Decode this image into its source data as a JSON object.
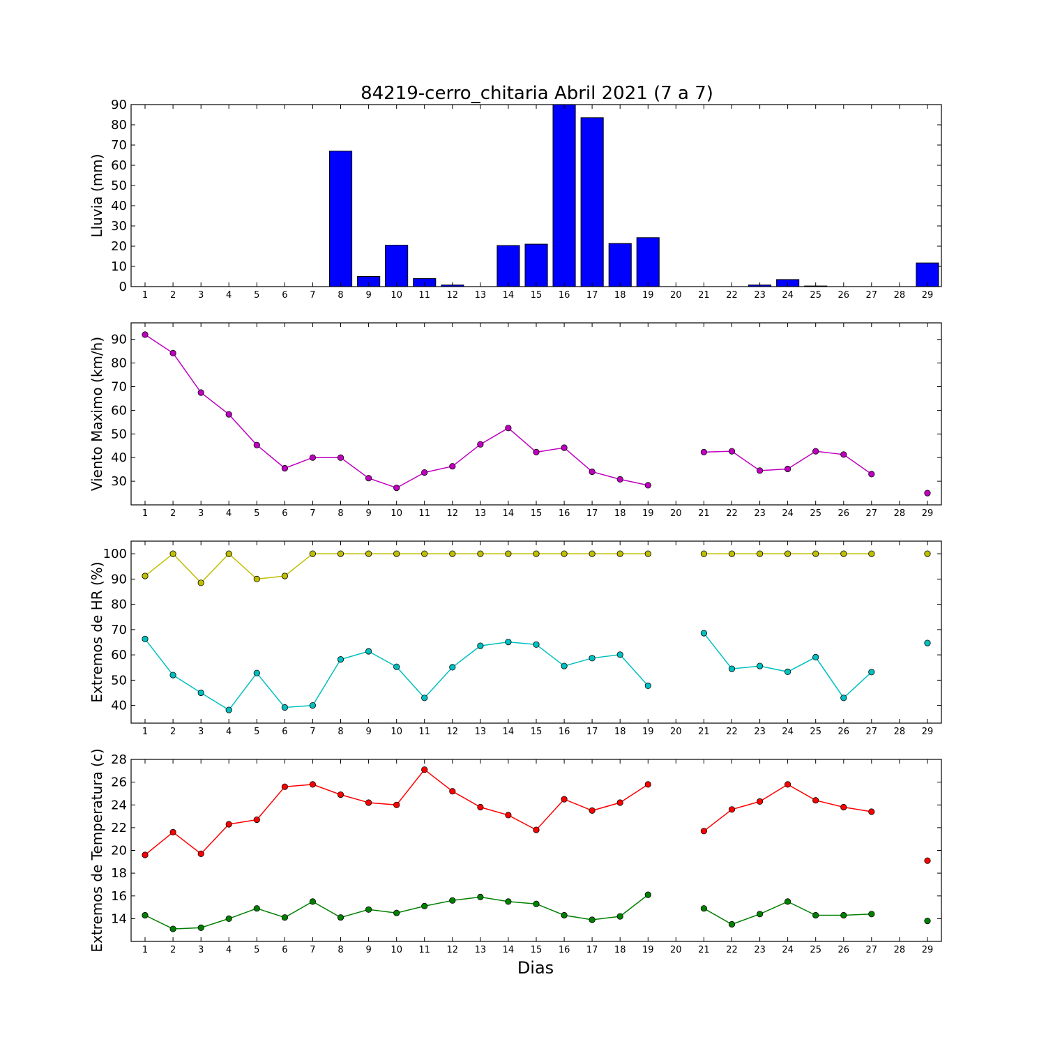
{
  "title": "84219-cerro_chitaria Abril 2021  (7 a 7)",
  "xlabel": "Dias",
  "chart_data": [
    {
      "type": "bar",
      "ylabel": "Lluvia (mm)",
      "ylim": [
        0,
        90
      ],
      "yticks": [
        0,
        10,
        20,
        30,
        40,
        50,
        60,
        70,
        80,
        90
      ],
      "x": [
        1,
        2,
        3,
        4,
        5,
        6,
        7,
        8,
        9,
        10,
        11,
        12,
        13,
        14,
        15,
        16,
        17,
        18,
        19,
        20,
        21,
        22,
        23,
        24,
        25,
        26,
        27,
        28,
        29
      ],
      "series": [
        {
          "color": "#0000ff",
          "values": [
            0,
            0,
            0,
            0,
            0,
            0,
            0,
            67,
            5,
            20.5,
            4,
            0.8,
            0,
            20.3,
            21,
            90,
            83.5,
            21.3,
            24.2,
            0,
            0,
            0,
            0.8,
            3.5,
            0.3,
            0,
            0,
            0,
            11.7
          ]
        }
      ]
    },
    {
      "type": "line",
      "ylabel": "Viento Maximo (km/h)",
      "ylim": [
        20,
        97
      ],
      "yticks": [
        30,
        40,
        50,
        60,
        70,
        80,
        90
      ],
      "x": [
        1,
        2,
        3,
        4,
        5,
        6,
        7,
        8,
        9,
        10,
        11,
        12,
        13,
        14,
        15,
        16,
        17,
        18,
        19,
        20,
        21,
        22,
        23,
        24,
        25,
        26,
        27,
        28,
        29
      ],
      "series": [
        {
          "color": "#bf00bf",
          "values": [
            92,
            84.2,
            67.5,
            58.3,
            45.3,
            35.5,
            40,
            40,
            31.3,
            27.2,
            33.7,
            36.3,
            45.6,
            52.5,
            42.3,
            44.2,
            34,
            30.8,
            28.3,
            null,
            42.3,
            42.7,
            34.5,
            35.2,
            42.7,
            41.3,
            33,
            null,
            25
          ]
        }
      ]
    },
    {
      "type": "line",
      "ylabel": "Extremos de HR (%)",
      "ylim": [
        33,
        105
      ],
      "yticks": [
        40,
        50,
        60,
        70,
        80,
        90,
        100
      ],
      "x": [
        1,
        2,
        3,
        4,
        5,
        6,
        7,
        8,
        9,
        10,
        11,
        12,
        13,
        14,
        15,
        16,
        17,
        18,
        19,
        20,
        21,
        22,
        23,
        24,
        25,
        26,
        27,
        28,
        29
      ],
      "series": [
        {
          "color": "#bfbf00",
          "values": [
            91.2,
            100,
            88.5,
            100,
            90,
            91.2,
            100,
            100,
            100,
            100,
            100,
            100,
            100,
            100,
            100,
            100,
            100,
            100,
            100,
            null,
            100,
            100,
            100,
            100,
            100,
            100,
            100,
            null,
            100
          ]
        },
        {
          "color": "#00bfbf",
          "values": [
            66.3,
            52,
            45,
            38.2,
            52.8,
            39.2,
            40,
            58.2,
            61.4,
            55.3,
            43,
            55.1,
            63.6,
            65.1,
            64.1,
            55.6,
            58.7,
            60.1,
            47.8,
            null,
            68.6,
            54.5,
            55.6,
            53.3,
            59.1,
            43,
            53.2,
            null,
            64.7
          ]
        }
      ]
    },
    {
      "type": "line",
      "ylabel": "Extremos de Temperatura (c)",
      "ylim": [
        12,
        28
      ],
      "yticks": [
        14,
        16,
        18,
        20,
        22,
        24,
        26,
        28
      ],
      "x": [
        1,
        2,
        3,
        4,
        5,
        6,
        7,
        8,
        9,
        10,
        11,
        12,
        13,
        14,
        15,
        16,
        17,
        18,
        19,
        20,
        21,
        22,
        23,
        24,
        25,
        26,
        27,
        28,
        29
      ],
      "series": [
        {
          "color": "#ff0000",
          "values": [
            19.6,
            21.6,
            19.7,
            22.3,
            22.7,
            25.6,
            25.8,
            24.9,
            24.2,
            24,
            27.1,
            25.2,
            23.8,
            23.1,
            21.8,
            24.5,
            23.5,
            24.2,
            25.8,
            null,
            21.7,
            23.6,
            24.3,
            25.8,
            24.4,
            23.8,
            23.4,
            null,
            19.1
          ]
        },
        {
          "color": "#008000",
          "values": [
            14.3,
            13.1,
            13.2,
            14,
            14.9,
            14.1,
            15.5,
            14.1,
            14.8,
            14.5,
            15.1,
            15.6,
            15.9,
            15.5,
            15.3,
            14.3,
            13.9,
            14.2,
            16.1,
            null,
            14.9,
            13.5,
            14.4,
            15.5,
            14.3,
            14.3,
            14.4,
            null,
            13.8
          ]
        }
      ]
    }
  ]
}
